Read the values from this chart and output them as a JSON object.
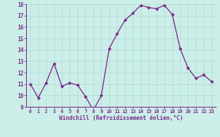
{
  "x": [
    0,
    1,
    2,
    3,
    4,
    5,
    6,
    7,
    8,
    9,
    10,
    11,
    12,
    13,
    14,
    15,
    16,
    17,
    18,
    19,
    20,
    21,
    22,
    23
  ],
  "y": [
    11,
    9.8,
    11.1,
    12.8,
    10.8,
    11.1,
    10.9,
    9.9,
    8.7,
    10.0,
    14.1,
    15.4,
    16.6,
    17.2,
    17.9,
    17.7,
    17.6,
    17.9,
    17.1,
    14.1,
    12.4,
    11.5,
    11.8,
    11.2
  ],
  "line_color": "#7b2d8b",
  "marker": "D",
  "marker_size": 2.2,
  "linewidth": 1.0,
  "bg_color": "#cceee8",
  "grid_color": "#b0ddd8",
  "xlabel": "Windchill (Refroidissement éolien,°C)",
  "xlabel_color": "#7b2d8b",
  "tick_color": "#7b2d8b",
  "ylim": [
    9,
    18
  ],
  "xlim": [
    -0.5,
    23.5
  ],
  "yticks": [
    9,
    10,
    11,
    12,
    13,
    14,
    15,
    16,
    17,
    18
  ],
  "xticks": [
    0,
    1,
    2,
    3,
    4,
    5,
    6,
    7,
    8,
    9,
    10,
    11,
    12,
    13,
    14,
    15,
    16,
    17,
    18,
    19,
    20,
    21,
    22,
    23
  ]
}
